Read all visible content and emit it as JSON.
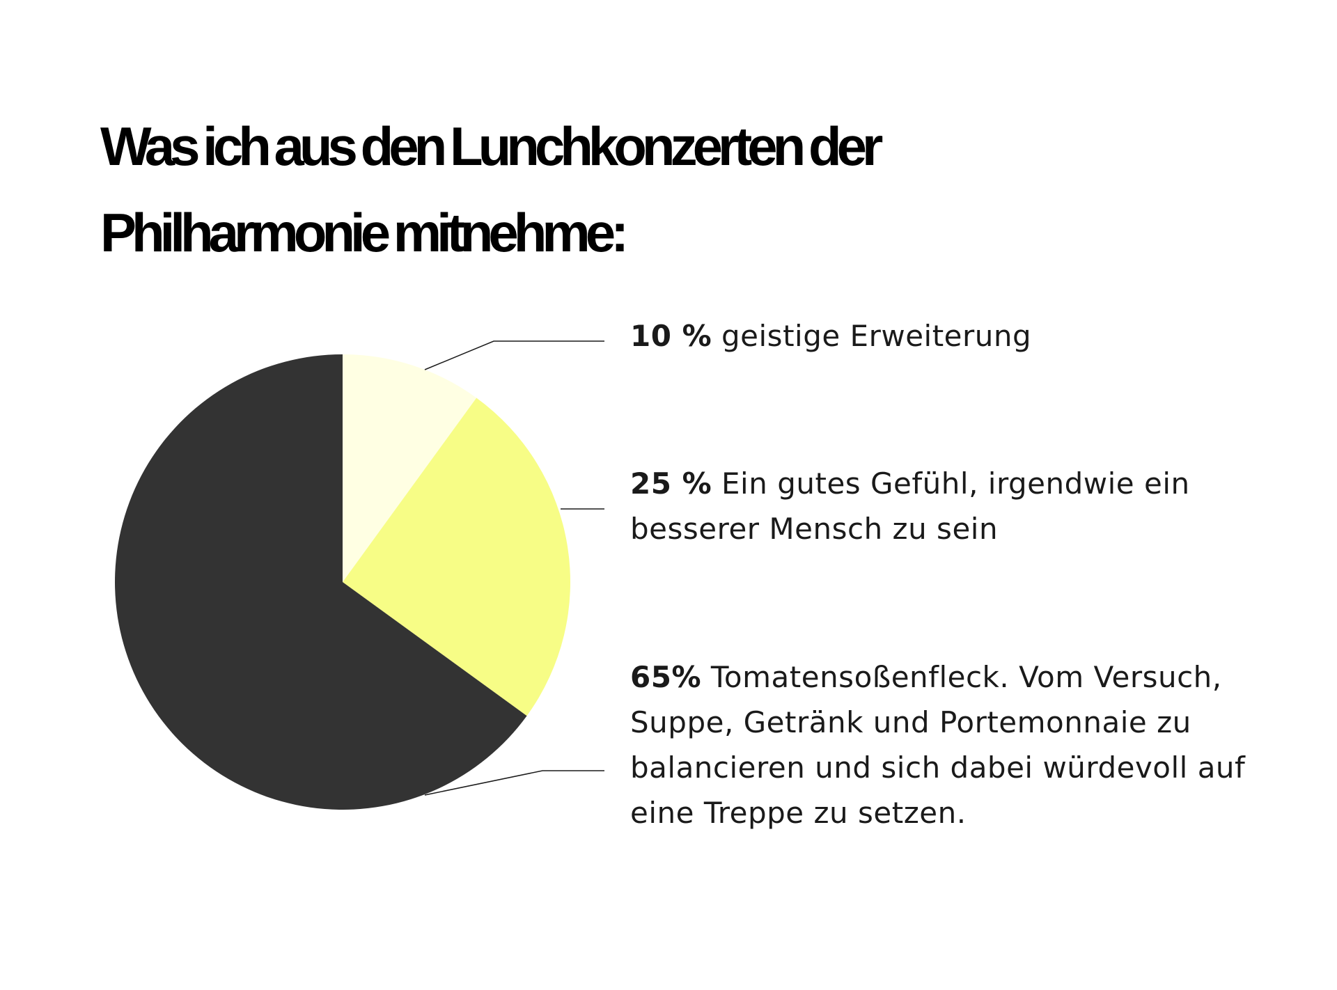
{
  "chart_data": {
    "type": "pie",
    "title": "Was ich aus den Lunchkonzerten der Philharmonie mitnehme:",
    "slices": [
      {
        "percent_label": "10 %",
        "label": "geistige Erweiterung",
        "value": 10,
        "color": "#FFFFE3"
      },
      {
        "percent_label": "25 %",
        "label": "Ein gutes Gefühl, irgendwie ein besserer Mensch zu sein",
        "value": 25,
        "color": "#F7FD86"
      },
      {
        "percent_label": "65%",
        "label": "Tomatensoßenfleck. Vom Versuch, Suppe, Getränk und Portemonnaie zu balancieren und sich dabei würdevoll auf eine Treppe zu setzen.",
        "value": 65,
        "color": "#333333"
      }
    ]
  }
}
